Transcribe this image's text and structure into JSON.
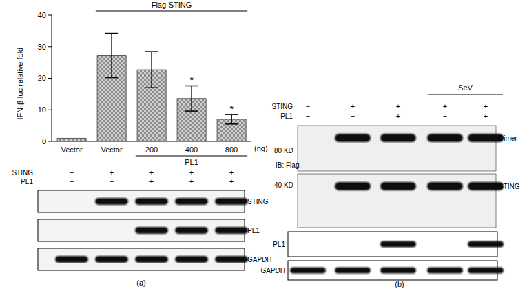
{
  "chart_data": {
    "type": "bar",
    "y_label": "IFN-β-luc relative fold",
    "x_label": "(ng)",
    "categories": [
      "Vector",
      "Vector",
      "200",
      "400",
      "800"
    ],
    "values": [
      1,
      27.2,
      22.7,
      13.6,
      7
    ],
    "errors": [
      0,
      7,
      5.7,
      4,
      1.5
    ],
    "significance": [
      null,
      null,
      null,
      "*",
      "*"
    ],
    "color": "#8c8c8c",
    "ylim": [
      0,
      40
    ],
    "yticks": [
      0,
      10,
      20,
      30,
      40
    ],
    "top_group": {
      "label": "Flag-STING",
      "from": 1,
      "to": 4
    },
    "bottom_group": {
      "label": "PL1",
      "from": 2,
      "to": 4
    }
  },
  "panels": {
    "a": {
      "label": "(a)",
      "conditions": [
        {
          "name": "STING",
          "signs": [
            "−",
            "+",
            "+",
            "+",
            "+"
          ]
        },
        {
          "name": "PL1",
          "signs": [
            "−",
            "−",
            "+",
            "+",
            "+"
          ]
        }
      ],
      "blots": [
        {
          "label": "STING",
          "bands": [
            false,
            true,
            true,
            true,
            true
          ]
        },
        {
          "label": "PL1",
          "bands": [
            false,
            false,
            true,
            true,
            true
          ]
        },
        {
          "label": "GAPDH",
          "bands": [
            true,
            true,
            true,
            true,
            true
          ]
        }
      ]
    },
    "b": {
      "label": "(b)",
      "header": {
        "label": "SeV",
        "from": 3,
        "to": 4
      },
      "conditions": [
        {
          "name": "STING",
          "signs": [
            "−",
            "+",
            "+",
            "+",
            "+"
          ]
        },
        {
          "name": "PL1",
          "signs": [
            "−",
            "−",
            "+",
            "−",
            "+"
          ]
        }
      ],
      "antibody": "IB: Flag",
      "blots": [
        {
          "label": "Dimer",
          "size_label": "80 KD",
          "bands": [
            false,
            true,
            true,
            true,
            true
          ]
        },
        {
          "label": "STING",
          "size_label": "40 KD",
          "bands": [
            false,
            true,
            true,
            true,
            true
          ]
        },
        {
          "label": "PL1",
          "bands": [
            false,
            false,
            true,
            false,
            true
          ]
        },
        {
          "label": "GAPDH",
          "bands": [
            true,
            true,
            true,
            true,
            true
          ]
        }
      ]
    }
  }
}
